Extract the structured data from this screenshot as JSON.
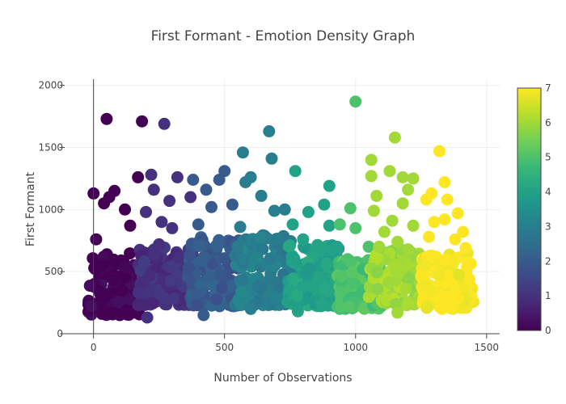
{
  "chart_data": {
    "type": "scatter",
    "title": "First Formant - Emotion Density Graph",
    "xlabel": "Number of Observations",
    "ylabel": "First Formant",
    "xlim": [
      -110,
      1550
    ],
    "ylim": [
      0,
      2050
    ],
    "x_ticks": [
      0,
      500,
      1000,
      1500
    ],
    "y_ticks": [
      0,
      500,
      1000,
      1500,
      2000
    ],
    "grid": true,
    "colorscale": "viridis",
    "colorbar": {
      "min": 0,
      "max": 7,
      "ticks": [
        0,
        1,
        2,
        3,
        4,
        5,
        6,
        7
      ]
    },
    "colors": [
      "#440154",
      "#482878",
      "#3e4989",
      "#31688e",
      "#26828e",
      "#1f9e89",
      "#35b779",
      "#6ece58",
      "#b5de2b",
      "#fde725"
    ],
    "emotion_groups": [
      {
        "emotion": 0,
        "x_range": [
          -20,
          180
        ],
        "core_range": [
          150,
          650
        ],
        "outliers": [
          [
            50,
            1730
          ],
          [
            185,
            1710
          ],
          [
            0,
            1130
          ],
          [
            80,
            1150
          ],
          [
            40,
            1050
          ],
          [
            170,
            1260
          ],
          [
            120,
            1000
          ],
          [
            10,
            760
          ],
          [
            140,
            870
          ],
          [
            100,
            150
          ],
          [
            60,
            1100
          ]
        ]
      },
      {
        "emotion": 1,
        "x_range": [
          170,
          380
        ],
        "core_range": [
          230,
          700
        ],
        "outliers": [
          [
            270,
            1690
          ],
          [
            220,
            1280
          ],
          [
            320,
            1260
          ],
          [
            230,
            1160
          ],
          [
            290,
            1070
          ],
          [
            370,
            1100
          ],
          [
            200,
            980
          ],
          [
            300,
            850
          ],
          [
            250,
            720
          ],
          [
            205,
            130
          ],
          [
            260,
            900
          ]
        ]
      },
      {
        "emotion": 2,
        "x_range": [
          360,
          560
        ],
        "core_range": [
          220,
          780
        ],
        "outliers": [
          [
            500,
            1310
          ],
          [
            430,
            1160
          ],
          [
            380,
            1240
          ],
          [
            480,
            1240
          ],
          [
            450,
            1020
          ],
          [
            530,
            1040
          ],
          [
            400,
            880
          ],
          [
            420,
            150
          ],
          [
            540,
            720
          ]
        ]
      },
      {
        "emotion": 3,
        "x_range": [
          540,
          760
        ],
        "core_range": [
          230,
          800
        ],
        "outliers": [
          [
            670,
            1630
          ],
          [
            570,
            1460
          ],
          [
            680,
            1410
          ],
          [
            600,
            1260
          ],
          [
            640,
            1110
          ],
          [
            580,
            1220
          ],
          [
            690,
            990
          ],
          [
            560,
            860
          ],
          [
            600,
            200
          ],
          [
            730,
            1000
          ]
        ]
      },
      {
        "emotion": 4,
        "x_range": [
          740,
          950
        ],
        "core_range": [
          220,
          720
        ],
        "outliers": [
          [
            770,
            1310
          ],
          [
            900,
            1190
          ],
          [
            820,
            980
          ],
          [
            880,
            1040
          ],
          [
            760,
            880
          ],
          [
            900,
            870
          ],
          [
            800,
            760
          ],
          [
            930,
            700
          ],
          [
            780,
            180
          ]
        ]
      },
      {
        "emotion": 5,
        "x_range": [
          930,
          1100
        ],
        "core_range": [
          200,
          600
        ],
        "outliers": [
          [
            1000,
            1870
          ],
          [
            980,
            1010
          ],
          [
            940,
            880
          ],
          [
            1000,
            850
          ],
          [
            1050,
            700
          ],
          [
            970,
            600
          ]
        ]
      },
      {
        "emotion": 6,
        "x_range": [
          1050,
          1250
        ],
        "core_range": [
          230,
          680
        ],
        "outliers": [
          [
            1150,
            1580
          ],
          [
            1060,
            1400
          ],
          [
            1130,
            1310
          ],
          [
            1180,
            1260
          ],
          [
            1220,
            1250
          ],
          [
            1060,
            1270
          ],
          [
            1080,
            1110
          ],
          [
            1200,
            1160
          ],
          [
            1180,
            1050
          ],
          [
            1070,
            990
          ],
          [
            1140,
            910
          ],
          [
            1110,
            820
          ],
          [
            1220,
            870
          ],
          [
            1160,
            740
          ],
          [
            1090,
            700
          ],
          [
            1200,
            680
          ],
          [
            1160,
            170
          ]
        ]
      },
      {
        "emotion": 7,
        "x_range": [
          1250,
          1450
        ],
        "core_range": [
          200,
          650
        ],
        "outliers": [
          [
            1320,
            1470
          ],
          [
            1340,
            1220
          ],
          [
            1290,
            1130
          ],
          [
            1350,
            1080
          ],
          [
            1270,
            1080
          ],
          [
            1390,
            970
          ],
          [
            1300,
            900
          ],
          [
            1340,
            920
          ],
          [
            1410,
            820
          ],
          [
            1280,
            780
          ],
          [
            1380,
            760
          ],
          [
            1420,
            690
          ],
          [
            1330,
            200
          ]
        ]
      }
    ]
  }
}
